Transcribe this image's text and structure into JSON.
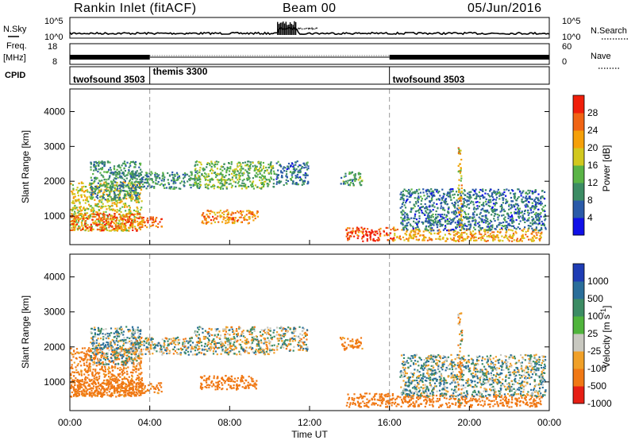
{
  "header": {
    "station": "Rankin Inlet (fitACF)",
    "beam": "Beam 00",
    "date": "05/Jun/2016"
  },
  "sidepanel_labels": {
    "nsky": "N.Sky",
    "nsearch": "N.Search",
    "freq_line1": "Freq.",
    "freq_line2": "[MHz]",
    "nave": "Nave",
    "cpid": "CPID"
  },
  "noise_panel": {
    "left_ticks": [
      "10^5",
      "10^0"
    ],
    "right_ticks": [
      "10^5",
      "10^0"
    ]
  },
  "freq_panel": {
    "left_ticks": [
      "18",
      "8"
    ],
    "right_ticks": [
      "60",
      "0"
    ]
  },
  "cpid_segments": [
    {
      "label": "twofsound 3503",
      "start_h": 0,
      "end_h": 4
    },
    {
      "label": "themis 3300",
      "start_h": 4,
      "end_h": 16
    },
    {
      "label": "twofsound 3503",
      "start_h": 16,
      "end_h": 24
    }
  ],
  "x_axis": {
    "label": "Time UT",
    "ticks": [
      "00:00",
      "04:00",
      "08:00",
      "12:00",
      "16:00",
      "20:00",
      "00:00"
    ],
    "tick_hours": [
      0,
      4,
      8,
      12,
      16,
      20,
      24
    ]
  },
  "panels": {
    "power": {
      "ylabel": "Slant Range [km]",
      "yticks": [
        "1000",
        "2000",
        "3000",
        "4000"
      ],
      "cbar_label": "Power [dB]",
      "cbar_ticks": [
        "4",
        "8",
        "12",
        "16",
        "20",
        "24",
        "28"
      ],
      "cbar_colors": [
        "#1010e8",
        "#2a5aa8",
        "#3c8c64",
        "#5ab446",
        "#d2c81e",
        "#f5a00a",
        "#f06414",
        "#f01e0a"
      ]
    },
    "velocity": {
      "ylabel": "Slant Range [km]",
      "yticks": [
        "1000",
        "2000",
        "3000",
        "4000"
      ],
      "cbar_label": "Velocity [m s^-1]",
      "cbar_ticks": [
        "1000",
        "500",
        "100",
        "25",
        "-25",
        "-100",
        "-500",
        "-1000"
      ],
      "cbar_colors": [
        "#1e3cb4",
        "#2a6e9a",
        "#3c8c64",
        "#50b43c",
        "#c8c8c0",
        "#f0a028",
        "#f07814",
        "#e61e14",
        "#e61414"
      ]
    }
  },
  "chart_data": {
    "type": "heatmap",
    "title": "Rankin Inlet (fitACF)",
    "subtitle": "Beam 00",
    "date": "05/Jun/2016",
    "xlabel": "Time UT",
    "x_range_hours": [
      0,
      24
    ],
    "ylabel": "Slant Range [km]",
    "ylim": [
      180,
      4650
    ],
    "power_colorbar": {
      "label": "Power [dB]",
      "ticks": [
        4,
        8,
        12,
        16,
        20,
        24,
        28
      ]
    },
    "velocity_colorbar": {
      "label": "Velocity [m s^-1]",
      "ticks": [
        1000,
        500,
        100,
        25,
        -25,
        -100,
        -500,
        -1000
      ]
    },
    "echo_regions": [
      {
        "t": [
          0.0,
          3.6
        ],
        "range_km": [
          600,
          2000
        ],
        "power_db": 18,
        "velocity": -200
      },
      {
        "t": [
          0.0,
          3.6
        ],
        "range_km": [
          600,
          1100
        ],
        "power_db": 26,
        "velocity": -300
      },
      {
        "t": [
          1.0,
          3.5
        ],
        "range_km": [
          1500,
          2600
        ],
        "power_db": 10,
        "velocity": 80
      },
      {
        "t": [
          3.0,
          6.5
        ],
        "range_km": [
          1800,
          2300
        ],
        "power_db": 10,
        "velocity": 0
      },
      {
        "t": [
          3.5,
          4.6
        ],
        "range_km": [
          700,
          1000
        ],
        "power_db": 26,
        "velocity": -200
      },
      {
        "t": [
          6.5,
          9.4
        ],
        "range_km": [
          800,
          1200
        ],
        "power_db": 24,
        "velocity": -250
      },
      {
        "t": [
          6.2,
          10.2
        ],
        "range_km": [
          1800,
          2600
        ],
        "power_db": 14,
        "velocity": 0
      },
      {
        "t": [
          10.3,
          11.9
        ],
        "range_km": [
          1900,
          2600
        ],
        "power_db": 8,
        "velocity": 0
      },
      {
        "t": [
          13.5,
          14.6
        ],
        "range_km": [
          1900,
          2300
        ],
        "power_db": 12,
        "velocity": -200
      },
      {
        "t": [
          13.8,
          16.2
        ],
        "range_km": [
          300,
          700
        ],
        "power_db": 28,
        "velocity": -300
      },
      {
        "t": [
          16.2,
          23.6
        ],
        "range_km": [
          300,
          650
        ],
        "power_db": 22,
        "velocity": -300
      },
      {
        "t": [
          16.5,
          23.8
        ],
        "range_km": [
          600,
          1800
        ],
        "power_db": 8,
        "velocity": 50
      },
      {
        "t": [
          19.4,
          19.6
        ],
        "range_km": [
          300,
          3000
        ],
        "power_db": 20,
        "velocity": -100
      }
    ],
    "frequency_mhz": [
      {
        "t": [
          0,
          4
        ],
        "freq": 10.5
      },
      {
        "t": [
          4,
          16
        ],
        "freq": 10.5
      },
      {
        "t": [
          16,
          24
        ],
        "freq": 10.5
      }
    ]
  }
}
